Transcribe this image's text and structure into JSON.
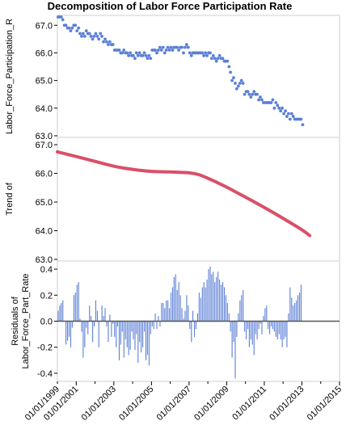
{
  "chart_data": {
    "title": "Decomposition of Labor Force Participation Rate",
    "x_axis": {
      "label": "",
      "type": "date",
      "range": [
        "2000-01-01",
        "2015-01-01"
      ],
      "ticks": [
        "01/01/1999",
        "01/01/2001",
        "01/01/2003",
        "01/01/2005",
        "01/01/2007",
        "01/01/2009",
        "01/01/2011",
        "01/01/2013",
        "01/01/2015"
      ]
    },
    "panels": [
      {
        "name": "observed",
        "type": "scatter",
        "ylabel": "Labor_Force_Participation_R",
        "ylim": [
          63.0,
          67.3
        ],
        "yticks": [
          63.0,
          64.0,
          65.0,
          66.0,
          67.0
        ],
        "ytick_labels": [
          "63.0",
          "64.0",
          "65.0",
          "66.0",
          "67.0"
        ],
        "color": "#5b7fd6",
        "start": "2000-01",
        "frequency": "monthly",
        "values": [
          67.3,
          67.3,
          67.3,
          67.2,
          67.0,
          67.0,
          66.9,
          66.9,
          66.8,
          66.9,
          67.0,
          67.0,
          66.8,
          66.9,
          66.7,
          66.6,
          66.7,
          66.6,
          66.8,
          66.7,
          66.7,
          66.6,
          66.5,
          66.6,
          66.7,
          66.6,
          66.5,
          66.7,
          66.6,
          66.4,
          66.5,
          66.4,
          66.3,
          66.4,
          66.3,
          66.3,
          66.1,
          66.1,
          66.1,
          66.1,
          66.0,
          66.0,
          66.1,
          66.0,
          66.0,
          65.9,
          66.0,
          65.9,
          65.9,
          65.8,
          66.0,
          65.9,
          66.0,
          65.9,
          65.9,
          66.0,
          65.9,
          65.8,
          65.9,
          65.8,
          66.1,
          66.1,
          66.1,
          66.0,
          66.1,
          66.2,
          66.1,
          66.2,
          66.0,
          66.1,
          66.2,
          66.1,
          66.2,
          66.1,
          66.2,
          66.2,
          66.2,
          66.1,
          66.2,
          66.2,
          66.0,
          66.2,
          66.3,
          66.2,
          66.0,
          65.9,
          66.0,
          66.0,
          66.0,
          66.0,
          66.0,
          66.0,
          66.0,
          65.9,
          66.0,
          65.9,
          66.0,
          66.0,
          65.8,
          65.9,
          65.8,
          65.7,
          65.8,
          65.9,
          65.8,
          65.8,
          65.7,
          65.7,
          65.7,
          65.5,
          65.3,
          65.0,
          65.1,
          64.9,
          64.7,
          64.8,
          64.9,
          65.0,
          64.9,
          64.5,
          64.6,
          64.6,
          64.5,
          64.4,
          64.5,
          64.6,
          64.5,
          64.5,
          64.3,
          64.4,
          64.3,
          64.2,
          64.2,
          64.2,
          64.2,
          64.2,
          64.2,
          64.3,
          64.0,
          64.2,
          64.1,
          64.0,
          63.9,
          64.0,
          63.8,
          63.9,
          63.7,
          63.8,
          63.6,
          63.8,
          63.7,
          63.6,
          63.6,
          63.6,
          63.6,
          63.6,
          63.4
        ]
      },
      {
        "name": "trend",
        "type": "line",
        "ylabel": "Trend of",
        "ylim": [
          63.0,
          67.2
        ],
        "yticks": [
          63.0,
          64.0,
          65.0,
          66.0,
          67.0
        ],
        "ytick_labels": [
          "63.0",
          "64.0",
          "65.0",
          "66.0",
          "67.0"
        ],
        "color": "#d95068",
        "x": [
          "2000-01",
          "2001-01",
          "2002-01",
          "2003-01",
          "2004-01",
          "2005-01",
          "2006-01",
          "2007-01",
          "2007-07",
          "2008-01",
          "2008-07",
          "2009-01",
          "2010-01",
          "2011-01",
          "2012-01",
          "2013-01",
          "2013-06"
        ],
        "values": [
          66.75,
          66.59,
          66.42,
          66.25,
          66.14,
          66.07,
          66.05,
          66.02,
          65.96,
          65.83,
          65.68,
          65.52,
          65.17,
          64.81,
          64.43,
          64.03,
          63.83
        ]
      },
      {
        "name": "residuals",
        "type": "bar",
        "ylabel": "Residuals of Labor_Force_Part_Rate",
        "ylim": [
          -0.45,
          0.45
        ],
        "yticks": [
          -0.4,
          -0.2,
          0.0,
          0.2,
          0.4
        ],
        "ytick_labels": [
          "-0.4",
          "-0.2",
          "0.0",
          "0.2",
          "0.4"
        ],
        "color": "#5b7fd6",
        "start": "2000-01",
        "frequency": "monthly",
        "values": [
          0.08,
          0.12,
          0.14,
          0.16,
          0.0,
          -0.18,
          -0.15,
          -0.12,
          -0.2,
          -0.05,
          0.2,
          0.22,
          0.28,
          0.3,
          0.02,
          -0.08,
          -0.28,
          -0.2,
          -0.05,
          -0.1,
          0.12,
          0.04,
          -0.16,
          -0.04,
          0.16,
          0.08,
          -0.2,
          0.0,
          0.12,
          0.04,
          0.1,
          -0.04,
          -0.16,
          0.05,
          -0.12,
          -0.02,
          -0.12,
          -0.2,
          -0.04,
          -0.3,
          -0.18,
          -0.08,
          -0.28,
          -0.14,
          -0.2,
          -0.26,
          -0.22,
          -0.08,
          -0.14,
          -0.22,
          -0.1,
          -0.32,
          -0.16,
          -0.24,
          -0.2,
          -0.08,
          -0.3,
          -0.26,
          -0.34,
          -0.1,
          -0.04,
          -0.06,
          0.06,
          -0.06,
          0.04,
          -0.04,
          0.14,
          0.14,
          0.1,
          0.16,
          0.16,
          0.1,
          0.22,
          0.26,
          0.34,
          0.36,
          0.24,
          0.3,
          0.2,
          0.1,
          0.02,
          0.08,
          0.2,
          0.12,
          -0.06,
          -0.16,
          0.08,
          -0.12,
          -0.06,
          0.06,
          0.22,
          0.18,
          0.26,
          0.3,
          0.26,
          0.32,
          0.4,
          0.42,
          0.36,
          0.38,
          0.3,
          0.34,
          0.38,
          0.32,
          0.28,
          0.3,
          0.26,
          0.2,
          0.14,
          0.06,
          -0.08,
          -0.28,
          -0.16,
          -0.44,
          -0.12,
          0.06,
          0.16,
          0.2,
          0.24,
          -0.08,
          -0.14,
          -0.06,
          -0.2,
          -0.14,
          -0.18,
          -0.26,
          -0.1,
          -0.14,
          -0.06,
          -0.02,
          -0.1,
          0.04,
          0.1,
          0.12,
          -0.06,
          -0.1,
          -0.04,
          -0.06,
          -0.08,
          -0.12,
          -0.14,
          -0.1,
          -0.14,
          -0.2,
          -0.14,
          -0.12,
          -0.2,
          0.06,
          0.26,
          0.18,
          0.12,
          0.14,
          0.16,
          0.2,
          0.22,
          0.28,
          0.0
        ]
      }
    ]
  }
}
